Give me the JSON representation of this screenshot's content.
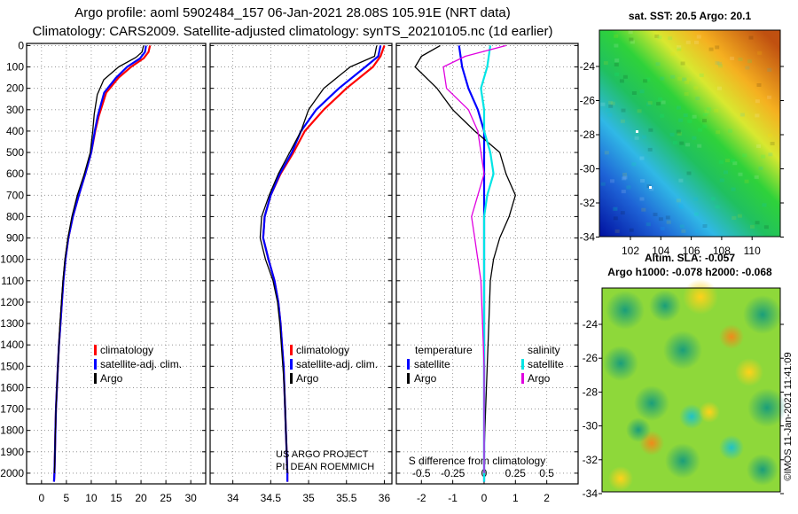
{
  "header": {
    "line1": "Argo profile: aoml 5902484_157 06-Jan-2021 28.08S 105.91E (NRT data)",
    "line2": "Climatology: CARS2009. Satellite-adjusted climatology: synTS_20210105.nc (1d earlier)"
  },
  "colors": {
    "climatology": "#ff0000",
    "satellite": "#0000ff",
    "argo": "#000000",
    "sat_salinity": "#00e5e5",
    "argo_salinity": "#e000e0"
  },
  "chart_data": [
    {
      "type": "line",
      "name": "temperature-profile",
      "ylabel": "Depth",
      "yticks": [
        0,
        100,
        200,
        300,
        400,
        500,
        600,
        700,
        800,
        900,
        1000,
        1100,
        1200,
        1300,
        1400,
        1500,
        1600,
        1700,
        1800,
        1900,
        2000
      ],
      "ylim": [
        2050,
        -10
      ],
      "xticks": [
        0,
        5,
        10,
        15,
        20,
        25,
        30
      ],
      "xlim": [
        -3,
        33
      ],
      "legend": [
        "climatology",
        "satellite-adj. clim.",
        "Argo"
      ],
      "series": [
        {
          "name": "climatology",
          "color": "#ff0000",
          "points": [
            [
              21.8,
              0
            ],
            [
              21.5,
              30
            ],
            [
              20.5,
              60
            ],
            [
              18,
              100
            ],
            [
              15.5,
              150
            ],
            [
              13,
              220
            ],
            [
              11.5,
              330
            ],
            [
              10.8,
              400
            ],
            [
              10,
              500
            ],
            [
              8.8,
              600
            ],
            [
              7.5,
              700
            ],
            [
              6.3,
              800
            ],
            [
              5.4,
              900
            ],
            [
              4.8,
              1000
            ],
            [
              4.4,
              1100
            ],
            [
              4.1,
              1200
            ],
            [
              3.8,
              1300
            ],
            [
              3.5,
              1400
            ],
            [
              3.3,
              1500
            ],
            [
              3.1,
              1600
            ],
            [
              2.9,
              1700
            ],
            [
              2.8,
              1800
            ],
            [
              2.7,
              1900
            ],
            [
              2.6,
              2000
            ],
            [
              2.5,
              2040
            ]
          ]
        },
        {
          "name": "satellite-adj. clim.",
          "color": "#0000ff",
          "points": [
            [
              21,
              0
            ],
            [
              20.8,
              30
            ],
            [
              19.8,
              60
            ],
            [
              17.2,
              100
            ],
            [
              15,
              150
            ],
            [
              12.6,
              220
            ],
            [
              11.3,
              330
            ],
            [
              10.7,
              400
            ],
            [
              10,
              500
            ],
            [
              8.8,
              600
            ],
            [
              7.5,
              700
            ],
            [
              6.3,
              800
            ],
            [
              5.4,
              900
            ],
            [
              4.8,
              1000
            ],
            [
              4.4,
              1100
            ],
            [
              4.1,
              1200
            ],
            [
              3.8,
              1300
            ],
            [
              3.5,
              1400
            ],
            [
              3.3,
              1500
            ],
            [
              3.1,
              1600
            ],
            [
              2.9,
              1700
            ],
            [
              2.8,
              1800
            ],
            [
              2.7,
              1900
            ],
            [
              2.6,
              2000
            ],
            [
              2.5,
              2040
            ]
          ]
        },
        {
          "name": "Argo",
          "color": "#000000",
          "points": [
            [
              20.5,
              0
            ],
            [
              20.2,
              30
            ],
            [
              19,
              55
            ],
            [
              15.5,
              100
            ],
            [
              12.5,
              160
            ],
            [
              11.2,
              230
            ],
            [
              10.6,
              320
            ],
            [
              10.3,
              400
            ],
            [
              9.8,
              500
            ],
            [
              8.6,
              600
            ],
            [
              7.2,
              700
            ],
            [
              6.1,
              800
            ],
            [
              5.3,
              900
            ],
            [
              4.7,
              1000
            ],
            [
              4.3,
              1100
            ],
            [
              4,
              1200
            ],
            [
              3.7,
              1300
            ],
            [
              3.5,
              1400
            ],
            [
              3.3,
              1500
            ],
            [
              3.1,
              1600
            ],
            [
              2.9,
              1700
            ],
            [
              2.8,
              1800
            ],
            [
              2.7,
              1900
            ],
            [
              2.6,
              2000
            ]
          ]
        }
      ]
    },
    {
      "type": "line",
      "name": "salinity-profile",
      "xticks": [
        34,
        34.5,
        35,
        35.5,
        36
      ],
      "xticklabels": [
        "34",
        "34.5",
        "35",
        "35.5",
        "36"
      ],
      "xlim": [
        33.7,
        36.1
      ],
      "legend": [
        "climatology",
        "satellite-adj. clim.",
        "Argo"
      ],
      "annotation": [
        "US ARGO PROJECT",
        "PI: DEAN ROEMMICH"
      ],
      "series": [
        {
          "name": "climatology",
          "color": "#ff0000",
          "points": [
            [
              36,
              0
            ],
            [
              35.95,
              50
            ],
            [
              35.85,
              100
            ],
            [
              35.5,
              200
            ],
            [
              35.2,
              300
            ],
            [
              34.95,
              400
            ],
            [
              34.8,
              500
            ],
            [
              34.63,
              600
            ],
            [
              34.5,
              700
            ],
            [
              34.42,
              800
            ],
            [
              34.4,
              900
            ],
            [
              34.47,
              1000
            ],
            [
              34.55,
              1100
            ],
            [
              34.6,
              1200
            ],
            [
              34.63,
              1300
            ],
            [
              34.65,
              1400
            ],
            [
              34.67,
              1500
            ],
            [
              34.68,
              1600
            ],
            [
              34.69,
              1700
            ],
            [
              34.7,
              1800
            ],
            [
              34.71,
              1900
            ],
            [
              34.72,
              2000
            ],
            [
              34.72,
              2040
            ]
          ]
        },
        {
          "name": "satellite-adj. clim.",
          "color": "#0000ff",
          "points": [
            [
              35.95,
              0
            ],
            [
              35.92,
              50
            ],
            [
              35.75,
              100
            ],
            [
              35.4,
              200
            ],
            [
              35.1,
              300
            ],
            [
              34.9,
              400
            ],
            [
              34.78,
              500
            ],
            [
              34.62,
              600
            ],
            [
              34.5,
              700
            ],
            [
              34.42,
              800
            ],
            [
              34.4,
              900
            ],
            [
              34.47,
              1000
            ],
            [
              34.55,
              1100
            ],
            [
              34.6,
              1200
            ],
            [
              34.63,
              1300
            ],
            [
              34.65,
              1400
            ],
            [
              34.67,
              1500
            ],
            [
              34.68,
              1600
            ],
            [
              34.69,
              1700
            ],
            [
              34.7,
              1800
            ],
            [
              34.71,
              1900
            ],
            [
              34.72,
              2000
            ],
            [
              34.72,
              2040
            ]
          ]
        },
        {
          "name": "Argo",
          "color": "#000000",
          "points": [
            [
              35.9,
              0
            ],
            [
              35.87,
              50
            ],
            [
              35.55,
              100
            ],
            [
              35.2,
              200
            ],
            [
              35,
              300
            ],
            [
              34.9,
              400
            ],
            [
              34.75,
              500
            ],
            [
              34.6,
              600
            ],
            [
              34.48,
              700
            ],
            [
              34.38,
              800
            ],
            [
              34.36,
              900
            ],
            [
              34.43,
              1000
            ],
            [
              34.53,
              1100
            ],
            [
              34.59,
              1200
            ],
            [
              34.62,
              1300
            ],
            [
              34.64,
              1400
            ],
            [
              34.66,
              1500
            ],
            [
              34.68,
              1600
            ],
            [
              34.69,
              1700
            ],
            [
              34.7,
              1800
            ],
            [
              34.71,
              1900
            ],
            [
              34.72,
              2000
            ]
          ]
        }
      ]
    },
    {
      "type": "line",
      "name": "difference-from-climatology",
      "xlabel": "S difference from climatology",
      "xticks_bottom": [
        -2,
        -1,
        0,
        1,
        2
      ],
      "xticks_top_labels": [
        "-0.5",
        "-0.25",
        "0",
        "0.25",
        "0.5"
      ],
      "xticks_top": [
        -2,
        -1,
        0,
        1,
        2
      ],
      "xlim": [
        -2.8,
        3.0
      ],
      "legend_temperature": {
        "title": "temperature",
        "items": [
          "satellite",
          "Argo"
        ]
      },
      "legend_salinity": {
        "title": "salinity",
        "items": [
          "satellite",
          "Argo"
        ]
      },
      "series": [
        {
          "name": "temperature satellite",
          "color": "#0000ff",
          "points": [
            [
              -0.8,
              0
            ],
            [
              -0.7,
              100
            ],
            [
              -0.5,
              200
            ],
            [
              -0.2,
              300
            ],
            [
              0,
              400
            ],
            [
              0,
              2040
            ]
          ]
        },
        {
          "name": "temperature Argo",
          "color": "#000000",
          "points": [
            [
              -1.4,
              0
            ],
            [
              -2,
              50
            ],
            [
              -2.2,
              100
            ],
            [
              -1.5,
              200
            ],
            [
              -1,
              300
            ],
            [
              -0.3,
              400
            ],
            [
              0.5,
              500
            ],
            [
              0.7,
              600
            ],
            [
              1,
              700
            ],
            [
              0.8,
              800
            ],
            [
              0.5,
              900
            ],
            [
              0.3,
              1000
            ],
            [
              0.2,
              1100
            ],
            [
              0.15,
              1300
            ],
            [
              0.1,
              1500
            ],
            [
              0.05,
              1700
            ],
            [
              0,
              1900
            ],
            [
              0,
              2000
            ]
          ]
        },
        {
          "name": "salinity satellite",
          "color": "#00e5e5",
          "points": [
            [
              0.2,
              0
            ],
            [
              0.1,
              100
            ],
            [
              -0.1,
              200
            ],
            [
              0,
              300
            ],
            [
              0,
              400
            ],
            [
              0.2,
              500
            ],
            [
              0.3,
              600
            ],
            [
              0.1,
              700
            ],
            [
              0,
              800
            ],
            [
              0,
              900
            ],
            [
              0,
              1000
            ],
            [
              0,
              2040
            ]
          ]
        },
        {
          "name": "salinity Argo",
          "color": "#e000e0",
          "points": [
            [
              0.7,
              0
            ],
            [
              -0.6,
              50
            ],
            [
              -1.3,
              100
            ],
            [
              -1.2,
              200
            ],
            [
              -0.5,
              300
            ],
            [
              -0.2,
              400
            ],
            [
              -0.1,
              500
            ],
            [
              0,
              600
            ],
            [
              -0.2,
              700
            ],
            [
              -0.4,
              800
            ],
            [
              -0.3,
              900
            ],
            [
              -0.2,
              1000
            ],
            [
              -0.1,
              1100
            ],
            [
              -0.05,
              1300
            ],
            [
              0,
              1500
            ],
            [
              0,
              1700
            ],
            [
              0,
              2000
            ]
          ]
        }
      ]
    },
    {
      "type": "heatmap",
      "name": "sst-map",
      "title": "sat. SST: 20.5 Argo: 20.1",
      "xticks": [
        "102",
        "104",
        "106",
        "108",
        "110"
      ],
      "yticks": [
        "-24",
        "-26",
        "-28",
        "-30",
        "-32",
        "-34"
      ]
    },
    {
      "type": "heatmap",
      "name": "sla-map",
      "title_line1": "Altim. SLA: -0.057",
      "title_line2": "Argo h1000: -0.078 h2000: -0.068",
      "yticks": [
        "-24",
        "-26",
        "-28",
        "-30",
        "-32",
        "-34"
      ],
      "side_label": "©IMOS 11-Jan-2021 11:41:09"
    }
  ]
}
